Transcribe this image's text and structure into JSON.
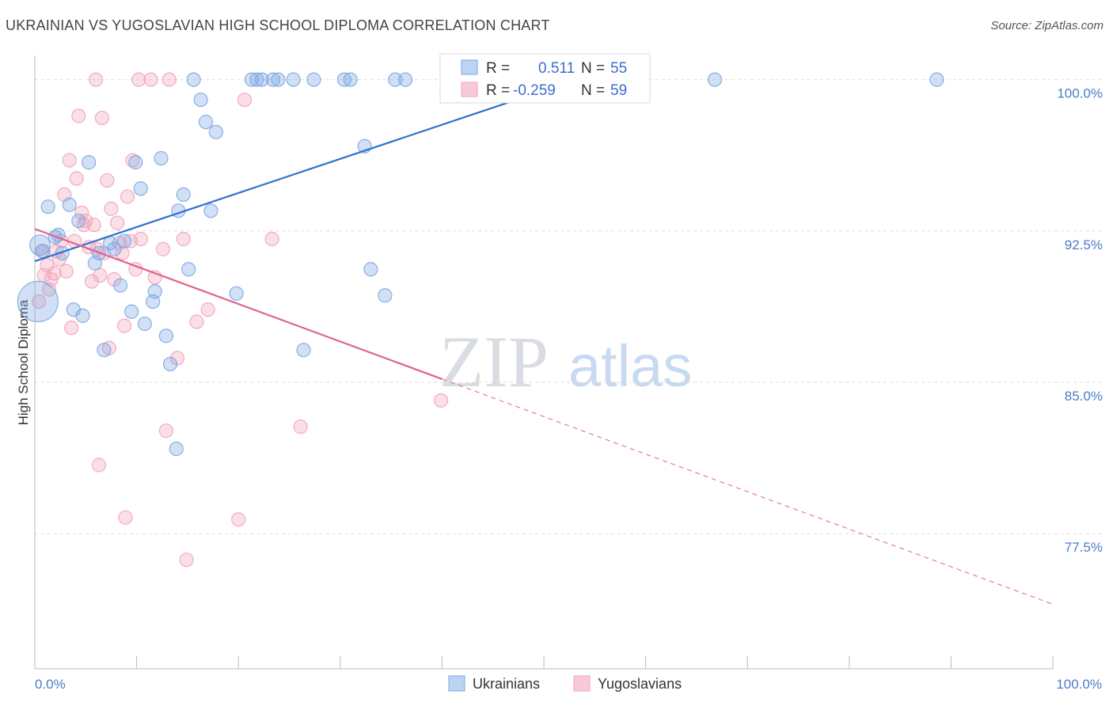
{
  "header": {
    "title": "UKRAINIAN VS YUGOSLAVIAN HIGH SCHOOL DIPLOMA CORRELATION CHART",
    "source": "Source: ZipAtlas.com"
  },
  "watermark": {
    "zip": "ZIP",
    "atlas": "atlas"
  },
  "colors": {
    "blue": "#7ba7e3",
    "blue_line": "#2d72cf",
    "pink": "#f2a3bb",
    "pink_line": "#e0628e",
    "grid": "#dddddd",
    "tick_text": "#4a7cc9"
  },
  "chart_data": {
    "type": "scatter",
    "title": "UKRAINIAN VS YUGOSLAVIAN HIGH SCHOOL DIPLOMA CORRELATION CHART",
    "xlabel": "",
    "ylabel": "High School Diploma",
    "xlim": [
      0,
      100
    ],
    "ylim": [
      70.8,
      101.2
    ],
    "x_tick_labels": [
      {
        "value": 0,
        "label": "0.0%"
      },
      {
        "value": 100,
        "label": "100.0%"
      }
    ],
    "y_ticks": [
      {
        "value": 100.0,
        "label": "100.0%"
      },
      {
        "value": 92.5,
        "label": "92.5%"
      },
      {
        "value": 85.0,
        "label": "85.0%"
      },
      {
        "value": 77.5,
        "label": "77.5%"
      }
    ],
    "legend": {
      "position": "top-center",
      "entries": [
        {
          "r_label": "R =",
          "r_value": "0.511",
          "n_label": "N =",
          "n_value": "55"
        },
        {
          "r_label": "R =",
          "r_value": "-0.259",
          "n_label": "N =",
          "n_value": "59"
        }
      ]
    },
    "series": [
      {
        "name": "Ukrainians",
        "color": "#7ba7e3",
        "trend": {
          "x0": 0,
          "y0": 91.0,
          "x1": 55,
          "y1": 100.3
        },
        "points": [
          [
            0.3,
            89.0,
            3
          ],
          [
            0.5,
            91.8,
            1.5
          ],
          [
            0.8,
            91.5,
            1
          ],
          [
            1.3,
            93.7,
            1
          ],
          [
            2.0,
            92.2,
            1
          ],
          [
            2.3,
            92.3,
            1
          ],
          [
            2.7,
            91.4,
            1
          ],
          [
            3.4,
            93.8,
            1
          ],
          [
            3.8,
            88.6,
            1
          ],
          [
            4.3,
            93.0,
            1
          ],
          [
            4.7,
            88.3,
            1
          ],
          [
            5.3,
            95.9,
            1
          ],
          [
            5.9,
            90.9,
            1
          ],
          [
            6.3,
            91.4,
            1
          ],
          [
            6.8,
            86.6,
            1
          ],
          [
            7.4,
            91.9,
            1
          ],
          [
            7.8,
            91.6,
            1
          ],
          [
            8.4,
            89.8,
            1
          ],
          [
            8.8,
            92.0,
            1
          ],
          [
            9.5,
            88.5,
            1
          ],
          [
            9.9,
            95.9,
            1
          ],
          [
            10.4,
            94.6,
            1
          ],
          [
            10.8,
            87.9,
            1
          ],
          [
            11.6,
            89.0,
            1
          ],
          [
            11.8,
            89.5,
            1
          ],
          [
            12.4,
            96.1,
            1
          ],
          [
            12.9,
            87.3,
            1
          ],
          [
            13.3,
            85.9,
            1
          ],
          [
            13.9,
            81.7,
            1
          ],
          [
            14.1,
            93.5,
            1
          ],
          [
            14.6,
            94.3,
            1
          ],
          [
            15.1,
            90.6,
            1
          ],
          [
            15.6,
            100.0,
            1
          ],
          [
            16.3,
            99.0,
            1
          ],
          [
            16.8,
            97.9,
            1
          ],
          [
            17.3,
            93.5,
            1
          ],
          [
            17.8,
            97.4,
            1
          ],
          [
            19.8,
            89.4,
            1
          ],
          [
            21.3,
            100.0,
            1
          ],
          [
            21.8,
            100.0,
            1
          ],
          [
            22.3,
            100.0,
            1
          ],
          [
            23.4,
            100.0,
            1
          ],
          [
            23.9,
            100.0,
            1
          ],
          [
            25.4,
            100.0,
            1
          ],
          [
            26.4,
            86.6,
            1
          ],
          [
            27.4,
            100.0,
            1
          ],
          [
            30.4,
            100.0,
            1
          ],
          [
            31.0,
            100.0,
            1
          ],
          [
            32.4,
            96.7,
            1
          ],
          [
            33.0,
            90.6,
            1
          ],
          [
            34.4,
            89.3,
            1
          ],
          [
            35.4,
            100.0,
            1
          ],
          [
            36.4,
            100.0,
            1
          ],
          [
            66.8,
            100.0,
            1
          ],
          [
            88.6,
            100.0,
            1
          ]
        ]
      },
      {
        "name": "Yugoslavians",
        "color": "#f2a3bb",
        "trend": {
          "x0": 0,
          "y0": 92.6,
          "x1": 100,
          "y1": 74.0,
          "solid_until_x": 40
        },
        "points": [
          [
            0.4,
            89.0,
            1
          ],
          [
            0.7,
            91.5,
            1
          ],
          [
            0.9,
            90.3,
            1
          ],
          [
            1.2,
            90.8,
            1
          ],
          [
            1.4,
            89.6,
            1
          ],
          [
            1.6,
            90.1,
            1
          ],
          [
            1.9,
            90.4,
            1
          ],
          [
            2.1,
            91.5,
            1
          ],
          [
            2.4,
            91.1,
            1
          ],
          [
            2.6,
            92.0,
            1
          ],
          [
            2.9,
            94.3,
            1
          ],
          [
            3.1,
            90.5,
            1
          ],
          [
            3.4,
            96.0,
            1
          ],
          [
            3.6,
            87.7,
            1
          ],
          [
            3.9,
            92.0,
            1
          ],
          [
            4.1,
            95.1,
            1
          ],
          [
            4.3,
            98.2,
            1
          ],
          [
            4.6,
            93.4,
            1
          ],
          [
            4.8,
            92.8,
            1
          ],
          [
            5.0,
            93.0,
            1
          ],
          [
            5.3,
            91.7,
            1
          ],
          [
            5.6,
            90.0,
            1
          ],
          [
            5.8,
            92.8,
            1
          ],
          [
            6.1,
            91.6,
            1
          ],
          [
            6.3,
            80.9,
            1
          ],
          [
            6.6,
            98.1,
            1
          ],
          [
            6.8,
            91.4,
            1
          ],
          [
            7.1,
            95.0,
            1
          ],
          [
            7.3,
            86.7,
            1
          ],
          [
            7.5,
            93.6,
            1
          ],
          [
            7.8,
            90.1,
            1
          ],
          [
            8.1,
            92.9,
            1
          ],
          [
            8.3,
            91.9,
            1
          ],
          [
            8.6,
            91.4,
            1
          ],
          [
            8.8,
            87.8,
            1
          ],
          [
            8.9,
            78.3,
            1
          ],
          [
            9.1,
            94.2,
            1
          ],
          [
            9.4,
            92.0,
            1
          ],
          [
            9.6,
            96.0,
            1
          ],
          [
            9.9,
            90.6,
            1
          ],
          [
            10.2,
            100.0,
            1
          ],
          [
            10.4,
            92.1,
            1
          ],
          [
            11.4,
            100.0,
            1
          ],
          [
            12.6,
            91.6,
            1
          ],
          [
            12.9,
            82.6,
            1
          ],
          [
            13.2,
            100.0,
            1
          ],
          [
            14.0,
            86.2,
            1
          ],
          [
            14.6,
            92.1,
            1
          ],
          [
            14.9,
            76.2,
            1
          ],
          [
            6.0,
            100.0,
            1
          ],
          [
            20.0,
            78.2,
            1
          ],
          [
            20.6,
            99.0,
            1
          ],
          [
            23.3,
            92.1,
            1
          ],
          [
            26.1,
            82.8,
            1
          ],
          [
            39.9,
            84.1,
            1
          ],
          [
            15.9,
            88.0,
            1
          ],
          [
            17.0,
            88.6,
            1
          ],
          [
            11.8,
            90.2,
            1
          ],
          [
            6.4,
            90.3,
            1
          ]
        ]
      }
    ]
  }
}
